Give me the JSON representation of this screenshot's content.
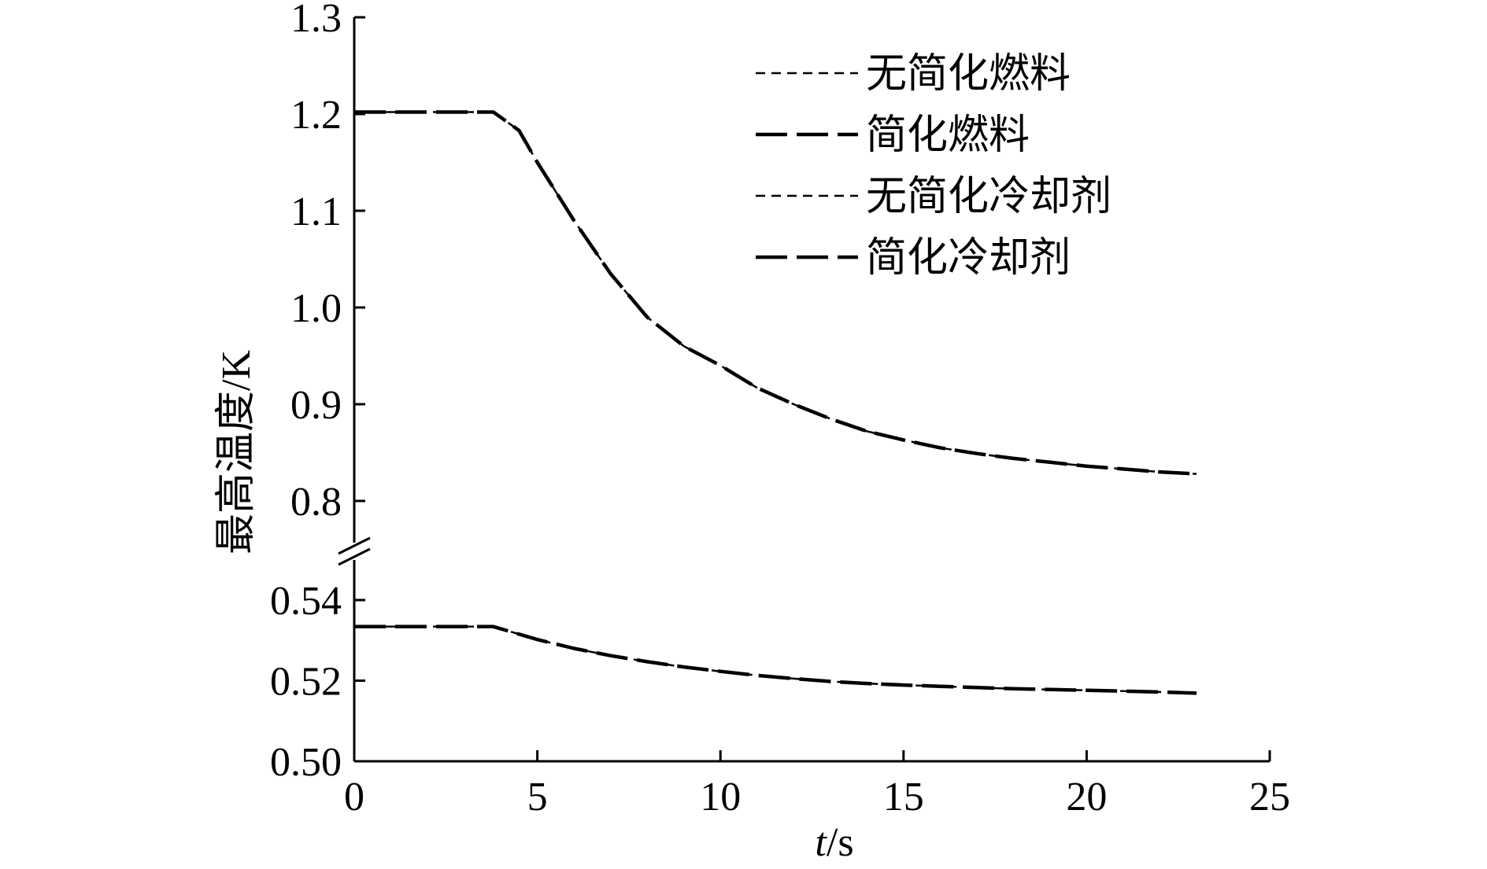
{
  "chart_data": {
    "type": "line",
    "title": "",
    "xlabel_italic": "t",
    "xlabel_unit": "/s",
    "ylabel": "最高温度/K",
    "xlim": [
      0,
      25
    ],
    "x_ticks": [
      "0",
      "5",
      "10",
      "15",
      "20",
      "25"
    ],
    "y_break": true,
    "y_upper": {
      "ylim": [
        0.8,
        1.3
      ],
      "ticks": [
        "0.8",
        "0.9",
        "1.0",
        "1.1",
        "1.2",
        "1.3"
      ]
    },
    "y_lower": {
      "ylim": [
        0.5,
        0.54
      ],
      "ticks": [
        "0.50",
        "0.52",
        "0.54"
      ]
    },
    "grid": false,
    "legend_position": "top-right",
    "series": [
      {
        "name": "无简化燃料",
        "style": "short-dash",
        "panel": "upper",
        "x": [
          0,
          3.8,
          4.5,
          5,
          6,
          7,
          8,
          9,
          10,
          11,
          12,
          13,
          14,
          15,
          16,
          17,
          18,
          19,
          20,
          21,
          22,
          23
        ],
        "y": [
          1.202,
          1.202,
          1.183,
          1.15,
          1.09,
          1.035,
          0.99,
          0.96,
          0.94,
          0.917,
          0.9,
          0.885,
          0.872,
          0.863,
          0.855,
          0.849,
          0.844,
          0.84,
          0.836,
          0.833,
          0.83,
          0.828
        ]
      },
      {
        "name": "简化燃料",
        "style": "long-dash",
        "panel": "upper",
        "x": [
          0,
          3.8,
          4.5,
          5,
          6,
          7,
          8,
          9,
          10,
          11,
          12,
          13,
          14,
          15,
          16,
          17,
          18,
          19,
          20,
          21,
          22,
          23
        ],
        "y": [
          1.202,
          1.202,
          1.183,
          1.15,
          1.09,
          1.035,
          0.99,
          0.96,
          0.94,
          0.917,
          0.9,
          0.885,
          0.872,
          0.863,
          0.855,
          0.849,
          0.844,
          0.84,
          0.836,
          0.833,
          0.83,
          0.828
        ]
      },
      {
        "name": "无简化冷却剂",
        "style": "short-dash",
        "panel": "lower",
        "x": [
          0,
          3.8,
          5,
          6,
          7,
          8,
          9,
          10,
          11,
          12,
          13,
          14,
          15,
          16,
          17,
          18,
          19,
          20,
          21,
          22,
          23
        ],
        "y": [
          0.5334,
          0.5334,
          0.5302,
          0.528,
          0.5262,
          0.5247,
          0.5234,
          0.5223,
          0.5213,
          0.5205,
          0.5198,
          0.5193,
          0.5189,
          0.5186,
          0.5183,
          0.518,
          0.5178,
          0.5176,
          0.5174,
          0.5172,
          0.5169
        ]
      },
      {
        "name": "简化冷却剂",
        "style": "long-dash",
        "panel": "lower",
        "x": [
          0,
          3.8,
          5,
          6,
          7,
          8,
          9,
          10,
          11,
          12,
          13,
          14,
          15,
          16,
          17,
          18,
          19,
          20,
          21,
          22,
          23
        ],
        "y": [
          0.5334,
          0.5334,
          0.5302,
          0.528,
          0.5262,
          0.5247,
          0.5234,
          0.5223,
          0.5213,
          0.5205,
          0.5198,
          0.5193,
          0.5189,
          0.5186,
          0.5183,
          0.518,
          0.5178,
          0.5176,
          0.5174,
          0.5172,
          0.5169
        ]
      }
    ]
  }
}
